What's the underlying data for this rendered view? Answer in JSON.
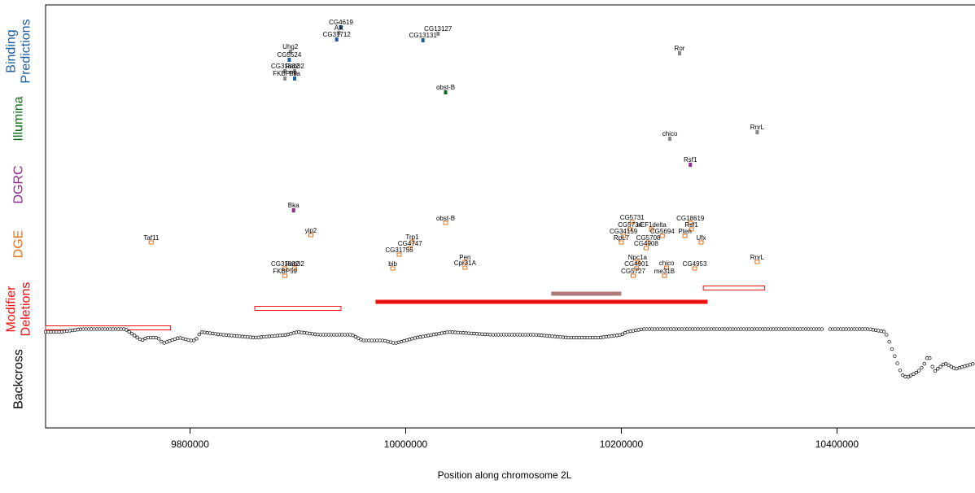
{
  "chart_data": {
    "type": "scatter",
    "title": "",
    "xlabel": "Position along chromosome 2L",
    "ylabel": "",
    "x_range": [
      9666000,
      10528000
    ],
    "x_ticks": [
      9800000,
      10000000,
      10200000,
      10400000
    ],
    "x_tick_labels": [
      "9800000",
      "10000000",
      "10200000",
      "10400000"
    ],
    "tracks": [
      {
        "id": "binding",
        "lines": [
          "Binding",
          "Predictions"
        ],
        "color": "#1f5f9f"
      },
      {
        "id": "illumina",
        "lines": [
          "Illumina"
        ],
        "color": "#0b6b1a"
      },
      {
        "id": "dgrc",
        "lines": [
          "DGRC"
        ],
        "color": "#8b2b8b"
      },
      {
        "id": "dge",
        "lines": [
          "DGE"
        ],
        "color": "#e0701a"
      },
      {
        "id": "modifier",
        "lines": [
          "Modifier",
          "Deletions"
        ],
        "color": "#ee1111"
      },
      {
        "id": "backcross",
        "lines": [
          "Backcross"
        ],
        "color": "#000000"
      }
    ],
    "genes": [
      {
        "track": "binding",
        "name": "CG4619",
        "x": 9940000,
        "row": 0,
        "color": "#1f5f9f"
      },
      {
        "track": "binding",
        "name": "Alk",
        "x": 9938000,
        "row": 1,
        "color": "#888888"
      },
      {
        "track": "binding",
        "name": "CG31712",
        "x": 9936000,
        "row": 2,
        "color": "#1f5f9f"
      },
      {
        "track": "binding",
        "name": "CG13127",
        "x": 10030000,
        "row": 3,
        "color": "#888888"
      },
      {
        "track": "binding",
        "name": "CG13131",
        "x": 10016000,
        "row": 4,
        "color": "#1f5f9f"
      },
      {
        "track": "binding",
        "name": "Uhg2",
        "x": 9893000,
        "row": 5,
        "color": "#888888"
      },
      {
        "track": "binding",
        "name": "CG5524",
        "x": 9892000,
        "row": 6,
        "color": "#1f5f9f"
      },
      {
        "track": "binding",
        "name": "Ror",
        "x": 10254000,
        "row": 7,
        "color": "#888888"
      },
      {
        "track": "binding",
        "name": "CG31832",
        "x": 9888000,
        "row": 8,
        "color": "#888888"
      },
      {
        "track": "binding",
        "name": "Rab32",
        "x": 9897000,
        "row": 9,
        "color": "#888888"
      },
      {
        "track": "binding",
        "name": "FKBP59",
        "x": 9888000,
        "row": 10,
        "color": "#888888"
      },
      {
        "track": "binding",
        "name": "Pka",
        "x": 9897000,
        "row": 11,
        "color": "#1f5f9f"
      },
      {
        "track": "illumina",
        "name": "obst-B",
        "x": 10037000,
        "row": 12,
        "color": "#0b6b1a"
      },
      {
        "track": "illumina",
        "name": "chico",
        "x": 10245000,
        "row": 13,
        "color": "#888888"
      },
      {
        "track": "illumina",
        "name": "RnrL",
        "x": 10326000,
        "row": 14,
        "color": "#888888"
      },
      {
        "track": "dgrc",
        "name": "Rsf1",
        "x": 10264000,
        "row": 15,
        "color": "#8b2b8b"
      },
      {
        "track": "dgrc",
        "name": "Bka",
        "x": 9896000,
        "row": 16,
        "color": "#8b2b8b"
      },
      {
        "track": "dge",
        "name": "obst-B",
        "x": 10037000,
        "row": 17,
        "color": "#e0701a"
      },
      {
        "track": "dge",
        "name": "CG5731",
        "x": 10210000,
        "row": 18,
        "color": "#e0701a"
      },
      {
        "track": "dge",
        "name": "CG18619",
        "x": 10264000,
        "row": 19,
        "color": "#e0701a"
      },
      {
        "track": "dge",
        "name": "CG5734",
        "x": 10208000,
        "row": 20,
        "color": "#e0701a"
      },
      {
        "track": "dge",
        "name": "eEF1delta",
        "x": 10228000,
        "row": 21,
        "color": "#e0701a"
      },
      {
        "track": "dge",
        "name": "Rsf1",
        "x": 10265000,
        "row": 22,
        "color": "#e0701a"
      },
      {
        "track": "dge",
        "name": "yip2",
        "x": 9912000,
        "row": 23,
        "color": "#e0701a"
      },
      {
        "track": "dge",
        "name": "CG34159",
        "x": 10202000,
        "row": 24,
        "color": "#e0701a"
      },
      {
        "track": "dge",
        "name": "CG5694",
        "x": 10238000,
        "row": 25,
        "color": "#e0701a"
      },
      {
        "track": "dge",
        "name": "Pten",
        "x": 10259000,
        "row": 26,
        "color": "#e0701a"
      },
      {
        "track": "dge",
        "name": "Taf11",
        "x": 9764000,
        "row": 27,
        "color": "#e0701a"
      },
      {
        "track": "dge",
        "name": "Trp1",
        "x": 10006000,
        "row": 28,
        "color": "#e0701a"
      },
      {
        "track": "dge",
        "name": "RpL7",
        "x": 10200000,
        "row": 29,
        "color": "#e0701a"
      },
      {
        "track": "dge",
        "name": "CG5708",
        "x": 10225000,
        "row": 30,
        "color": "#e0701a"
      },
      {
        "track": "dge",
        "name": "Ufx",
        "x": 10274000,
        "row": 31,
        "color": "#e0701a"
      },
      {
        "track": "dge",
        "name": "CG4747",
        "x": 10004000,
        "row": 32,
        "color": "#e0701a"
      },
      {
        "track": "dge",
        "name": "CG4908",
        "x": 10223000,
        "row": 33,
        "color": "#e0701a"
      },
      {
        "track": "dge",
        "name": "CG31755",
        "x": 9994000,
        "row": 34,
        "color": "#e0701a"
      },
      {
        "track": "dge",
        "name": "Pen",
        "x": 10055000,
        "row": 35,
        "color": "#e0701a"
      },
      {
        "track": "dge",
        "name": "Npc1a",
        "x": 10215000,
        "row": 36,
        "color": "#e0701a"
      },
      {
        "track": "dge",
        "name": "RnrL",
        "x": 10326000,
        "row": 37,
        "color": "#e0701a"
      },
      {
        "track": "dge",
        "name": "CG31832",
        "x": 9888000,
        "row": 38,
        "color": "#e0701a"
      },
      {
        "track": "dge",
        "name": "Rab32",
        "x": 9897000,
        "row": 39,
        "color": "#e0701a"
      },
      {
        "track": "dge",
        "name": "bib",
        "x": 9988000,
        "row": 40,
        "color": "#e0701a"
      },
      {
        "track": "dge",
        "name": "Cpr31A",
        "x": 10055000,
        "row": 41,
        "color": "#e0701a"
      },
      {
        "track": "dge",
        "name": "CG4901",
        "x": 10214000,
        "row": 42,
        "color": "#e0701a"
      },
      {
        "track": "dge",
        "name": "chico",
        "x": 10242000,
        "row": 43,
        "color": "#e0701a"
      },
      {
        "track": "dge",
        "name": "CG4953",
        "x": 10268000,
        "row": 44,
        "color": "#e0701a"
      },
      {
        "track": "dge",
        "name": "FKBP59",
        "x": 9888000,
        "row": 45,
        "color": "#e0701a"
      },
      {
        "track": "dge",
        "name": "CG5727",
        "x": 10211000,
        "row": 46,
        "color": "#e0701a"
      },
      {
        "track": "dge",
        "name": "me31B",
        "x": 10240000,
        "row": 47,
        "color": "#e0701a"
      }
    ],
    "deletions": [
      {
        "start": 9666000,
        "end": 9782000,
        "style": "outline",
        "color": "#ee1111",
        "level": 0
      },
      {
        "start": 9860000,
        "end": 9940000,
        "style": "outline",
        "color": "#ee1111",
        "level": 1
      },
      {
        "start": 9972000,
        "end": 10280000,
        "style": "filled",
        "color": "#ee1111",
        "level": 2
      },
      {
        "start": 10135000,
        "end": 10200000,
        "style": "filled",
        "color": "#b07a7a",
        "level": 3
      },
      {
        "start": 10276000,
        "end": 10333000,
        "style": "outline",
        "color": "#ee1111",
        "level": 4
      }
    ],
    "backcross": {
      "x": [
        9666000,
        9680000,
        9700000,
        9720000,
        9740000,
        9755000,
        9760000,
        9770000,
        9775000,
        9790000,
        9800000,
        9805000,
        9810000,
        9830000,
        9860000,
        9890000,
        9900000,
        9920000,
        9950000,
        9960000,
        9980000,
        9990000,
        10000000,
        10010000,
        10025000,
        10040000,
        10080000,
        10120000,
        10150000,
        10180000,
        10200000,
        10205000,
        10220000,
        10240000,
        10300000,
        10350000,
        10390000,
        10400000,
        10430000,
        10445000,
        10450000,
        10460000,
        10465000,
        10475000,
        10480000,
        10485000,
        10490000,
        10500000,
        10510000,
        10528000
      ],
      "y": [
        0.87,
        0.87,
        0.88,
        0.88,
        0.88,
        0.84,
        0.85,
        0.85,
        0.83,
        0.85,
        0.84,
        0.84,
        0.87,
        0.86,
        0.85,
        0.86,
        0.87,
        0.86,
        0.86,
        0.84,
        0.84,
        0.83,
        0.84,
        0.85,
        0.86,
        0.87,
        0.86,
        0.86,
        0.85,
        0.85,
        0.86,
        0.87,
        0.88,
        0.88,
        0.88,
        0.88,
        0.88,
        0.88,
        0.88,
        0.87,
        0.82,
        0.72,
        0.71,
        0.73,
        0.75,
        0.79,
        0.73,
        0.76,
        0.74,
        0.76
      ]
    },
    "grid": false,
    "legend": "none"
  }
}
